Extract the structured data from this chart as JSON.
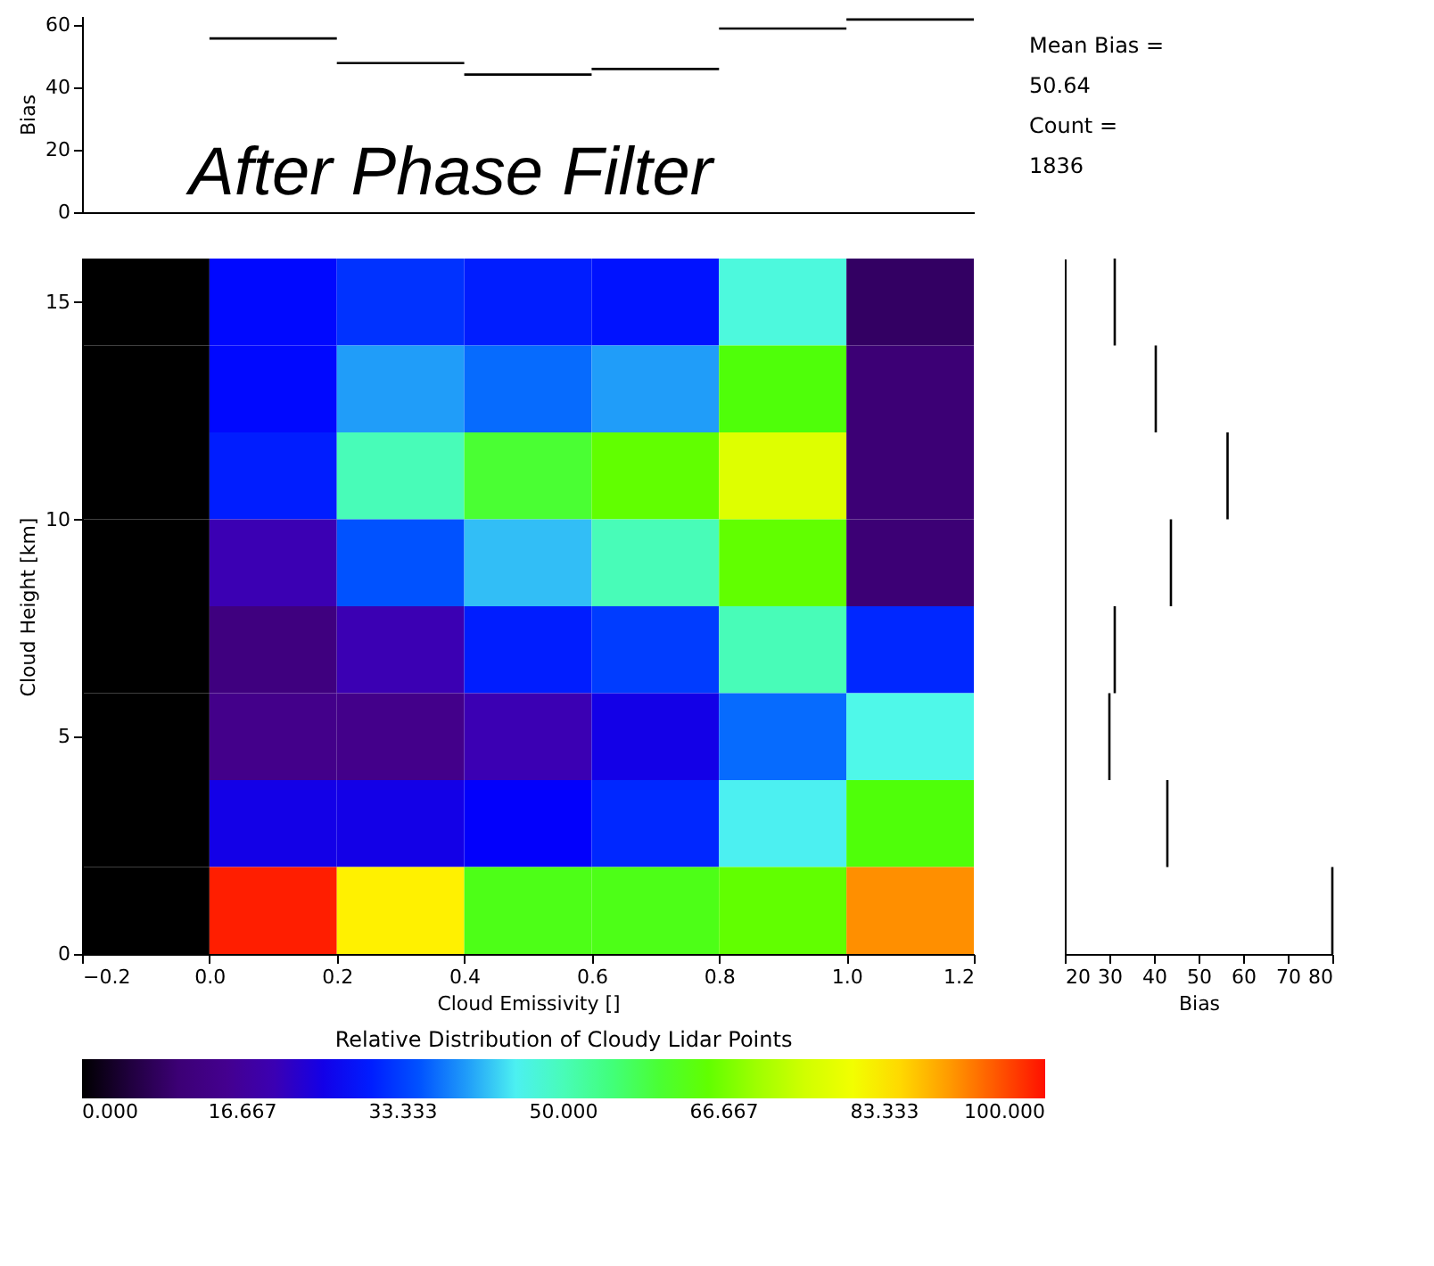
{
  "chart_data": [
    {
      "type": "line",
      "title": "After Phase Filter",
      "ylabel": "Bias",
      "xlim": [
        -0.2,
        1.2
      ],
      "ylim": [
        0,
        63
      ],
      "yticks": [
        0,
        20,
        40,
        60
      ],
      "tick_labels": "y",
      "series": [
        {
          "color": "#000000",
          "x": [
            0.0,
            0.2
          ],
          "values": [
            55.8,
            55.8
          ]
        },
        {
          "color": "#000000",
          "x": [
            0.2,
            0.4
          ],
          "values": [
            47.9,
            47.9
          ]
        },
        {
          "color": "#000000",
          "x": [
            0.4,
            0.6
          ],
          "values": [
            44.2,
            44.2
          ]
        },
        {
          "color": "#000000",
          "x": [
            0.6,
            0.8
          ],
          "values": [
            46.0,
            46.0
          ]
        },
        {
          "color": "#000000",
          "x": [
            0.8,
            1.0
          ],
          "values": [
            59.0,
            59.0
          ]
        },
        {
          "color": "#000000",
          "x": [
            1.0,
            1.2
          ],
          "values": [
            61.9,
            61.9
          ]
        }
      ],
      "annotations": [
        "Mean Bias =",
        "50.64",
        "Count =",
        "1836"
      ]
    },
    {
      "type": "heatmap",
      "xlabel": "Cloud Emissivity []",
      "ylabel": "Cloud Height [km]",
      "clabel": "Relative Distribution of Cloudy Lidar Points",
      "x": [
        -0.1,
        0.1,
        0.3,
        0.5,
        0.7,
        0.9,
        1.1
      ],
      "cells": [
        [
          0,
          28,
          32,
          30,
          29,
          47,
          8
        ],
        [
          0,
          28,
          40,
          37,
          40,
          63,
          10
        ],
        [
          0,
          30,
          50,
          60,
          65,
          77,
          10
        ],
        [
          0,
          20,
          35,
          42,
          50,
          65,
          10
        ],
        [
          0,
          12,
          20,
          30,
          33,
          50,
          31
        ],
        [
          0,
          14,
          14,
          20,
          25,
          37,
          46
        ],
        [
          0,
          25,
          25,
          27,
          31,
          45,
          63
        ],
        [
          0,
          99,
          83,
          62,
          62,
          65,
          91
        ]
      ],
      "xlim": [
        -0.2,
        1.2
      ],
      "xticks": [
        {
          "value": -0.2,
          "label": "−0.2"
        },
        {
          "value": 0,
          "label": "0.0"
        },
        {
          "value": 0.2,
          "label": "0.2"
        },
        {
          "value": 0.4,
          "label": "0.4"
        },
        {
          "value": 0.6,
          "label": "0.6"
        },
        {
          "value": 0.8,
          "label": "0.8"
        },
        {
          "value": 1.0,
          "label": "1.0"
        },
        {
          "value": 1.2,
          "label": "1.2"
        }
      ],
      "ylim": [
        0,
        16
      ],
      "yticks": [
        0,
        5,
        10,
        15
      ],
      "clim": [
        0,
        100
      ],
      "cticks": [
        {
          "value": 0,
          "label": "0.000"
        },
        {
          "value": 16.667,
          "label": "16.667"
        },
        {
          "value": 33.333,
          "label": "33.333"
        },
        {
          "value": 50,
          "label": "50.000"
        },
        {
          "value": 66.667,
          "label": "66.667"
        },
        {
          "value": 83.333,
          "label": "83.333"
        },
        {
          "value": 100,
          "label": "100.000"
        }
      ]
    },
    {
      "type": "line",
      "xlabel": "Bias",
      "xlim": [
        20,
        80
      ],
      "xticks": [
        20,
        30,
        40,
        50,
        60,
        70,
        80
      ],
      "ylim": [
        0,
        16
      ],
      "tick_labels": "x",
      "series": [
        {
          "color": "#000000",
          "x": [
            31.2,
            31.2
          ],
          "values": [
            14,
            16
          ]
        },
        {
          "color": "#000000",
          "x": [
            40.4,
            40.4
          ],
          "values": [
            12,
            14
          ]
        },
        {
          "color": "#000000",
          "x": [
            56.5,
            56.5
          ],
          "values": [
            10,
            12
          ]
        },
        {
          "color": "#000000",
          "x": [
            43.8,
            43.8
          ],
          "values": [
            8,
            10
          ]
        },
        {
          "color": "#000000",
          "x": [
            31.2,
            31.2
          ],
          "values": [
            6,
            8
          ]
        },
        {
          "color": "#000000",
          "x": [
            30.0,
            30.0
          ],
          "values": [
            4,
            6
          ]
        },
        {
          "color": "#000000",
          "x": [
            43.0,
            43.0
          ],
          "values": [
            2,
            4
          ]
        },
        {
          "color": "#000000",
          "x": [
            80.0,
            80.0
          ],
          "values": [
            0,
            2
          ]
        }
      ]
    }
  ]
}
